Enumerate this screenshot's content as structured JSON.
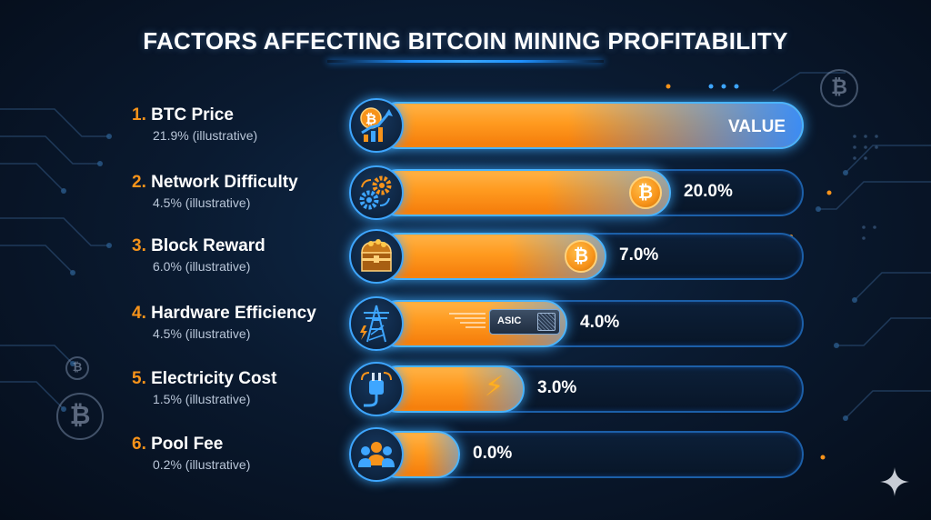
{
  "title": "FACTORS AFFECTING BITCOIN MINING PROFITABILITY",
  "colors": {
    "accent_orange": "#f7931a",
    "glow_blue": "#3ea6ff",
    "background": "#0a1a30"
  },
  "chart_data": {
    "type": "bar",
    "orientation": "horizontal",
    "title": "FACTORS AFFECTING BITCOIN MINING PROFITABILITY",
    "categories": [
      "BTC Price",
      "Network Difficulty",
      "Block Reward",
      "Hardware Efficiency",
      "Electricity Cost",
      "Pool Fee"
    ],
    "numbers": [
      "1.",
      "2.",
      "3.",
      "4.",
      "5.",
      "6."
    ],
    "subtitles": [
      "21.9% (illustrative)",
      "4.5% (illustrative)",
      "6.0% (illustrative)",
      "4.5% (illustrative)",
      "1.5% (illustrative)",
      "0.2% (illustrative)"
    ],
    "bar_labels": [
      "VALUE",
      "20.0%",
      "7.0%",
      "4.0%",
      "3.0%",
      "0.0%"
    ],
    "fill_fractions": [
      1.0,
      0.69,
      0.54,
      0.45,
      0.35,
      0.2
    ],
    "icons": [
      "btc-chart-icon",
      "gears-icon",
      "treasure-chest-icon",
      "power-tower-icon",
      "plug-icon",
      "users-icon"
    ],
    "legend": "none",
    "grid": false
  }
}
